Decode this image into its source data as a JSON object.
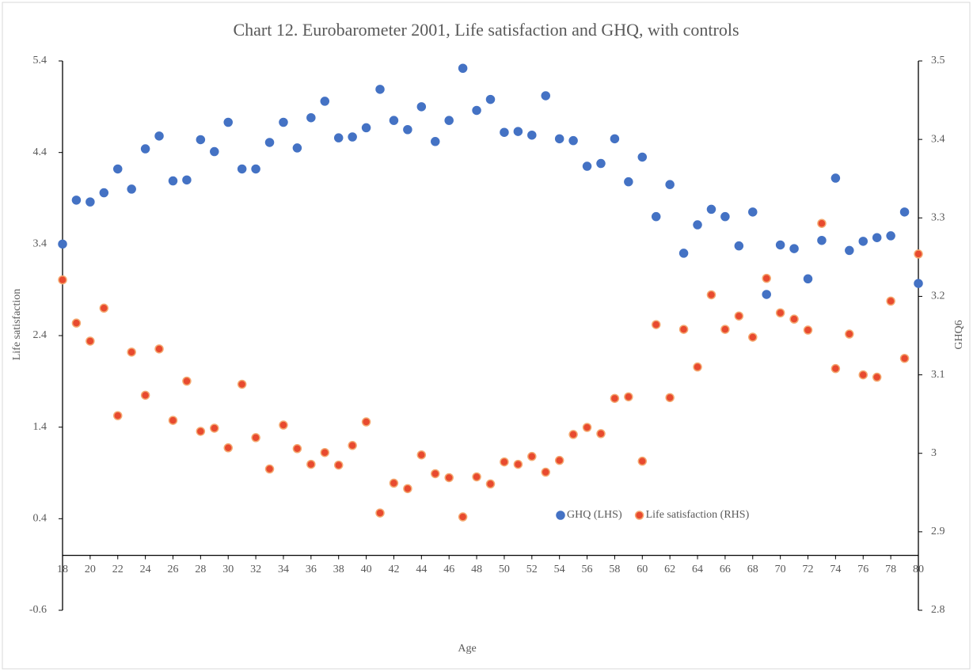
{
  "chart_data": {
    "type": "scatter",
    "title": "Chart 12.  Eurobarometer 2001, Life satisfaction and GHQ, with controls",
    "xlabel": "Age",
    "ylabel": "Life satisfaction",
    "y2label": "GHQ6",
    "x": [
      18,
      19,
      20,
      21,
      22,
      23,
      24,
      25,
      26,
      27,
      28,
      29,
      30,
      31,
      32,
      33,
      34,
      35,
      36,
      37,
      38,
      39,
      40,
      41,
      42,
      43,
      44,
      45,
      46,
      47,
      48,
      49,
      50,
      51,
      52,
      53,
      54,
      55,
      56,
      57,
      58,
      59,
      60,
      61,
      62,
      63,
      64,
      65,
      66,
      67,
      68,
      69,
      70,
      71,
      72,
      73,
      74,
      75,
      76,
      77,
      78,
      79,
      80
    ],
    "xlim": [
      18,
      80
    ],
    "xticks": [
      18,
      20,
      22,
      24,
      26,
      28,
      30,
      32,
      34,
      36,
      38,
      40,
      42,
      44,
      46,
      48,
      50,
      52,
      54,
      56,
      58,
      60,
      62,
      64,
      66,
      68,
      70,
      72,
      74,
      76,
      78,
      80
    ],
    "ylim": [
      -0.6,
      5.4
    ],
    "yticks": [
      -0.6,
      0.4,
      1.4,
      2.4,
      3.4,
      4.4,
      5.4
    ],
    "y2lim": [
      2.8,
      3.5
    ],
    "y2ticks": [
      2.8,
      2.9,
      3,
      3.1,
      3.2,
      3.3,
      3.4,
      3.5
    ],
    "legend": "bottom-right",
    "series": [
      {
        "name": "GHQ (LHS)",
        "color": "#4472c4",
        "axis": "y",
        "values": [
          3.4,
          3.88,
          3.86,
          3.96,
          4.22,
          4.0,
          4.44,
          4.58,
          4.09,
          4.1,
          4.54,
          4.41,
          4.73,
          4.22,
          4.22,
          4.51,
          4.73,
          4.45,
          4.78,
          4.96,
          4.56,
          4.57,
          4.67,
          5.09,
          4.75,
          4.65,
          4.9,
          4.52,
          4.75,
          5.32,
          4.86,
          4.98,
          4.62,
          4.63,
          4.59,
          5.02,
          4.55,
          4.53,
          4.25,
          4.28,
          4.55,
          4.08,
          4.35,
          3.7,
          4.05,
          3.3,
          3.61,
          3.78,
          3.7,
          3.38,
          3.75,
          2.85,
          3.39,
          3.35,
          3.02,
          3.44,
          4.12,
          3.33,
          3.43,
          3.47,
          3.49,
          3.75,
          2.97
        ]
      },
      {
        "name": "Life satisfaction (RHS)",
        "color": "#e84a2f",
        "edgecolor": "#f4a971",
        "axis": "y2",
        "values": [
          3.221,
          3.166,
          3.143,
          3.185,
          3.048,
          3.129,
          3.074,
          3.133,
          3.042,
          3.092,
          3.028,
          3.032,
          3.007,
          3.088,
          3.02,
          2.98,
          3.036,
          3.006,
          2.986,
          3.001,
          2.985,
          3.01,
          3.04,
          2.924,
          2.962,
          2.955,
          2.998,
          2.974,
          2.969,
          2.919,
          2.97,
          2.961,
          2.989,
          2.986,
          2.996,
          2.976,
          2.991,
          3.024,
          3.033,
          3.025,
          3.07,
          3.072,
          2.99,
          3.164,
          3.071,
          3.158,
          3.11,
          3.202,
          3.158,
          3.175,
          3.148,
          3.223,
          3.179,
          3.171,
          3.157,
          3.293,
          3.108,
          3.152,
          3.1,
          3.097,
          3.194,
          3.121,
          3.254
        ]
      }
    ]
  }
}
